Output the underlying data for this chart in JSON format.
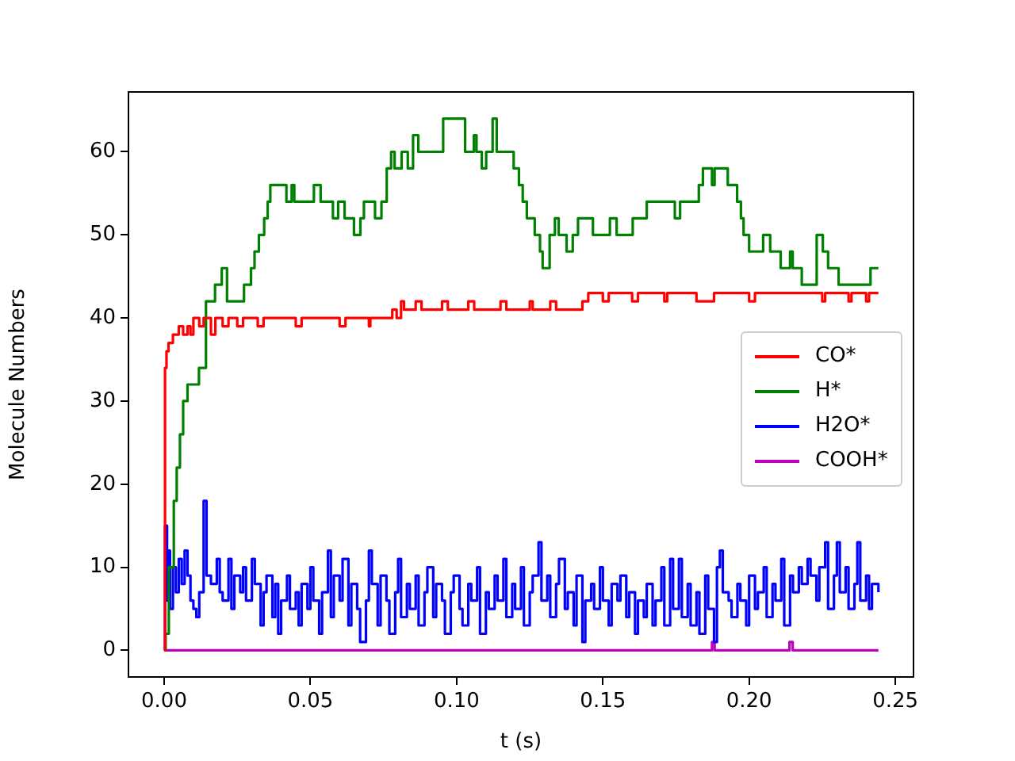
{
  "chart_data": {
    "type": "step",
    "xlabel": "t (s)",
    "ylabel": "Molecule Numbers",
    "xlim": [
      -0.0122,
      0.2562
    ],
    "ylim": [
      -3.2,
      67.2
    ],
    "xticks": [
      {
        "value": 0,
        "label": "0.00"
      },
      {
        "value": 0.05,
        "label": "0.05"
      },
      {
        "value": 0.1,
        "label": "0.10"
      },
      {
        "value": 0.15,
        "label": "0.15"
      },
      {
        "value": 0.2,
        "label": "0.20"
      },
      {
        "value": 0.25,
        "label": "0.25"
      }
    ],
    "yticks": [
      0,
      10,
      20,
      30,
      40,
      50,
      60
    ],
    "grid": false,
    "legend": "right",
    "marker": "none",
    "line_style": "solid",
    "series": [
      {
        "name": "CO*",
        "color": "#ff0000",
        "x": [
          0,
          0.0003,
          0.0008,
          0.0015,
          0.003,
          0.005,
          0.0065,
          0.008,
          0.009,
          0.01,
          0.012,
          0.0135,
          0.016,
          0.0175,
          0.02,
          0.022,
          0.025,
          0.027,
          0.032,
          0.034,
          0.045,
          0.047,
          0.05,
          0.052,
          0.06,
          0.062,
          0.07,
          0.0705,
          0.078,
          0.0795,
          0.081,
          0.082,
          0.086,
          0.088,
          0.095,
          0.097,
          0.104,
          0.106,
          0.115,
          0.117,
          0.125,
          0.126,
          0.132,
          0.134,
          0.143,
          0.145,
          0.15,
          0.152,
          0.16,
          0.162,
          0.171,
          0.172,
          0.18,
          0.182,
          0.188,
          0.19,
          0.2,
          0.202,
          0.21,
          0.212,
          0.225,
          0.226,
          0.234,
          0.235,
          0.24,
          0.241,
          0.2442
        ],
        "values": [
          0,
          34,
          36,
          37,
          38,
          39,
          38,
          39,
          38,
          40,
          39,
          40,
          38,
          40,
          39,
          40,
          39,
          40,
          39,
          40,
          39,
          40,
          40,
          40,
          39,
          40,
          39,
          40,
          41,
          40,
          42,
          41,
          42,
          41,
          42,
          41,
          42,
          41,
          42,
          41,
          42,
          41,
          42,
          41,
          42,
          43,
          42,
          43,
          42,
          43,
          42,
          43,
          43,
          42,
          43,
          43,
          42,
          43,
          43,
          43,
          42,
          43,
          42,
          43,
          42,
          43,
          43
        ]
      },
      {
        "name": "H*",
        "color": "#008000",
        "x": [
          0,
          0.0005,
          0.0016,
          0.0033,
          0.0043,
          0.0054,
          0.0065,
          0.008,
          0.0119,
          0.0143,
          0.0174,
          0.0197,
          0.0215,
          0.0237,
          0.0273,
          0.0297,
          0.0309,
          0.0324,
          0.0342,
          0.0354,
          0.0363,
          0.0418,
          0.0436,
          0.0445,
          0.0512,
          0.0535,
          0.0577,
          0.0595,
          0.0617,
          0.0649,
          0.0671,
          0.0683,
          0.0721,
          0.0743,
          0.0761,
          0.0776,
          0.0788,
          0.0812,
          0.0833,
          0.0851,
          0.0869,
          0.0954,
          0.1029,
          0.1059,
          0.1068,
          0.1086,
          0.1101,
          0.1123,
          0.1137,
          0.1195,
          0.1213,
          0.1226,
          0.124,
          0.1267,
          0.1285,
          0.1294,
          0.1318,
          0.1336,
          0.1349,
          0.1376,
          0.1397,
          0.1415,
          0.1466,
          0.1524,
          0.1547,
          0.1602,
          0.165,
          0.1746,
          0.1764,
          0.1828,
          0.1842,
          0.1873,
          0.1882,
          0.1927,
          0.1959,
          0.1972,
          0.1981,
          0.2,
          0.2048,
          0.2072,
          0.2108,
          0.214,
          0.2149,
          0.218,
          0.2231,
          0.2252,
          0.227,
          0.2306,
          0.2415,
          0.2442
        ],
        "values": [
          0,
          2,
          10,
          18,
          22,
          26,
          30,
          32,
          34,
          42,
          44,
          46,
          42,
          42,
          44,
          46,
          48,
          50,
          52,
          54,
          56,
          54,
          56,
          54,
          56,
          54,
          52,
          54,
          52,
          50,
          52,
          54,
          52,
          54,
          58,
          60,
          58,
          60,
          58,
          62,
          60,
          64,
          60,
          62,
          60,
          58,
          60,
          64,
          60,
          58,
          56,
          54,
          52,
          50,
          48,
          46,
          50,
          52,
          50,
          48,
          50,
          52,
          50,
          52,
          50,
          52,
          54,
          52,
          54,
          56,
          58,
          56,
          58,
          56,
          54,
          52,
          50,
          48,
          50,
          48,
          46,
          48,
          46,
          44,
          50,
          48,
          46,
          44,
          46,
          46
        ]
      },
      {
        "name": "H2O*",
        "color": "#0000ff",
        "x": [
          0,
          0.0003,
          0.001,
          0.0015,
          0.002,
          0.003,
          0.004,
          0.005,
          0.006,
          0.007,
          0.008,
          0.009,
          0.01,
          0.011,
          0.012,
          0.0135,
          0.0145,
          0.016,
          0.018,
          0.019,
          0.02,
          0.022,
          0.023,
          0.024,
          0.026,
          0.027,
          0.028,
          0.03,
          0.031,
          0.033,
          0.034,
          0.035,
          0.037,
          0.038,
          0.039,
          0.04,
          0.042,
          0.043,
          0.045,
          0.046,
          0.047,
          0.049,
          0.05,
          0.051,
          0.053,
          0.054,
          0.056,
          0.057,
          0.058,
          0.06,
          0.061,
          0.063,
          0.064,
          0.066,
          0.067,
          0.069,
          0.07,
          0.071,
          0.073,
          0.074,
          0.076,
          0.077,
          0.079,
          0.08,
          0.081,
          0.083,
          0.084,
          0.086,
          0.087,
          0.089,
          0.09,
          0.092,
          0.093,
          0.095,
          0.096,
          0.098,
          0.099,
          0.101,
          0.102,
          0.104,
          0.105,
          0.107,
          0.108,
          0.11,
          0.111,
          0.113,
          0.114,
          0.116,
          0.117,
          0.119,
          0.12,
          0.122,
          0.123,
          0.125,
          0.126,
          0.128,
          0.129,
          0.131,
          0.132,
          0.134,
          0.135,
          0.137,
          0.138,
          0.14,
          0.141,
          0.143,
          0.144,
          0.146,
          0.147,
          0.149,
          0.15,
          0.152,
          0.153,
          0.155,
          0.156,
          0.158,
          0.159,
          0.161,
          0.162,
          0.164,
          0.165,
          0.167,
          0.168,
          0.17,
          0.171,
          0.173,
          0.174,
          0.176,
          0.177,
          0.179,
          0.18,
          0.182,
          0.183,
          0.185,
          0.186,
          0.188,
          0.189,
          0.19,
          0.191,
          0.193,
          0.194,
          0.196,
          0.197,
          0.199,
          0.2,
          0.202,
          0.203,
          0.205,
          0.206,
          0.208,
          0.209,
          0.211,
          0.212,
          0.214,
          0.215,
          0.217,
          0.218,
          0.22,
          0.221,
          0.223,
          0.224,
          0.226,
          0.227,
          0.229,
          0.23,
          0.231,
          0.233,
          0.234,
          0.236,
          0.237,
          0.238,
          0.24,
          0.241,
          0.242,
          0.2442
        ],
        "values": [
          0,
          15,
          6,
          12,
          5,
          10,
          7,
          11,
          8,
          12,
          9,
          6,
          5,
          4,
          7,
          18,
          9,
          8,
          11,
          7,
          6,
          11,
          5,
          9,
          7,
          10,
          6,
          11,
          8,
          3,
          7,
          9,
          4,
          8,
          2,
          6,
          9,
          5,
          7,
          3,
          8,
          5,
          10,
          6,
          2,
          7,
          12,
          4,
          9,
          6,
          11,
          3,
          8,
          5,
          1,
          6,
          12,
          8,
          3,
          9,
          6,
          2,
          7,
          11,
          4,
          8,
          5,
          9,
          3,
          7,
          10,
          4,
          8,
          6,
          2,
          7,
          9,
          5,
          3,
          8,
          6,
          10,
          2,
          7,
          5,
          9,
          6,
          11,
          4,
          8,
          5,
          10,
          3,
          7,
          9,
          13,
          6,
          9,
          4,
          8,
          11,
          5,
          7,
          3,
          9,
          1,
          6,
          8,
          5,
          10,
          6,
          3,
          8,
          6,
          9,
          4,
          7,
          2,
          6,
          4,
          8,
          3,
          6,
          10,
          3,
          11,
          5,
          11,
          4,
          8,
          3,
          7,
          2,
          9,
          5,
          1,
          10,
          12,
          7,
          6,
          4,
          8,
          6,
          3,
          9,
          5,
          7,
          10,
          4,
          8,
          6,
          11,
          3,
          9,
          7,
          10,
          8,
          11,
          9,
          6,
          10,
          13,
          5,
          9,
          13,
          7,
          10,
          5,
          8,
          13,
          6,
          9,
          5,
          8,
          7
        ]
      },
      {
        "name": "COOH*",
        "color": "#bf00bf",
        "x": [
          0,
          0.1873,
          0.1882,
          0.2138,
          0.2149,
          0.2442
        ],
        "values": [
          0,
          1,
          0,
          1,
          0,
          0
        ]
      }
    ]
  }
}
